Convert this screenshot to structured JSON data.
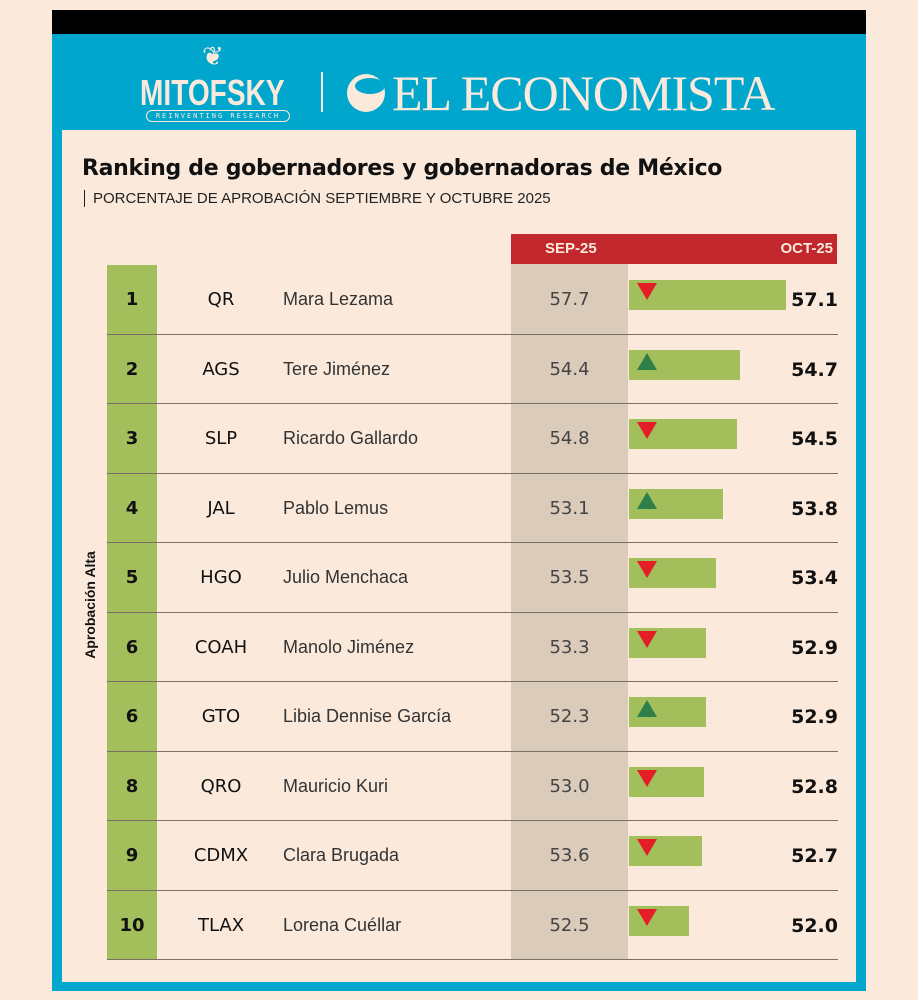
{
  "brand": {
    "mitofsky": "MITOFSKY",
    "mitofsky_tagline": "REINVENTING RESEARCH",
    "economista": "EL ECONOMISTA"
  },
  "colors": {
    "frame": "#00a6cc",
    "header": "#c1272d",
    "bar": "#a3bf5c",
    "down": "#e41e26",
    "up": "#2f8048"
  },
  "chart_data": {
    "type": "bar",
    "title": "Ranking de gobernadores y gobernadoras de México",
    "subtitle": "PORCENTAJE DE APROBACIÓN SEPTIEMBRE Y OCTUBRE 2025",
    "group_label": "Aprobación Alta",
    "columns": {
      "sep": "SEP-25",
      "oct": "OCT-25"
    },
    "rows": [
      {
        "rank": "1",
        "state": "QR",
        "name": "Mara Lezama",
        "sep": 57.7,
        "oct": 57.1,
        "trend": "down"
      },
      {
        "rank": "2",
        "state": "AGS",
        "name": "Tere Jiménez",
        "sep": 54.4,
        "oct": 54.7,
        "trend": "up"
      },
      {
        "rank": "3",
        "state": "SLP",
        "name": "Ricardo Gallardo",
        "sep": 54.8,
        "oct": 54.5,
        "trend": "down"
      },
      {
        "rank": "4",
        "state": "JAL",
        "name": "Pablo Lemus",
        "sep": 53.1,
        "oct": 53.8,
        "trend": "up"
      },
      {
        "rank": "5",
        "state": "HGO",
        "name": "Julio Menchaca",
        "sep": 53.5,
        "oct": 53.4,
        "trend": "down"
      },
      {
        "rank": "6",
        "state": "COAH",
        "name": "Manolo Jiménez",
        "sep": 53.3,
        "oct": 52.9,
        "trend": "down"
      },
      {
        "rank": "6",
        "state": "GTO",
        "name": "Libia Dennise García",
        "sep": 52.3,
        "oct": 52.9,
        "trend": "up"
      },
      {
        "rank": "8",
        "state": "QRO",
        "name": "Mauricio Kuri",
        "sep": 53.0,
        "oct": 52.8,
        "trend": "down"
      },
      {
        "rank": "9",
        "state": "CDMX",
        "name": "Clara Brugada",
        "sep": 53.6,
        "oct": 52.7,
        "trend": "down"
      },
      {
        "rank": "10",
        "state": "TLAX",
        "name": "Lorena Cuéllar",
        "sep": 52.5,
        "oct": 52.0,
        "trend": "down"
      }
    ]
  }
}
